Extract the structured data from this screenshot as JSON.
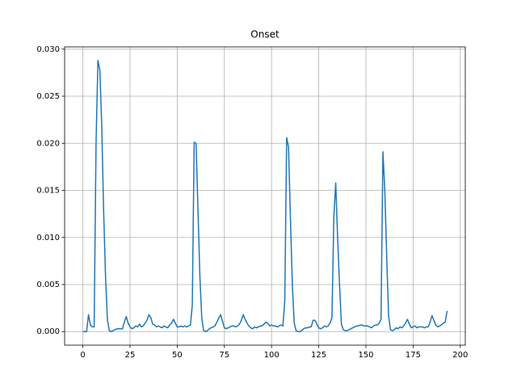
{
  "chart_data": {
    "type": "line",
    "title": "Onset",
    "x": [
      0,
      1,
      2,
      3,
      4,
      5,
      6,
      7,
      8,
      9,
      10,
      11,
      12,
      13,
      14,
      15,
      16,
      17,
      18,
      19,
      20,
      21,
      22,
      23,
      24,
      25,
      26,
      27,
      28,
      29,
      30,
      31,
      32,
      33,
      34,
      35,
      36,
      37,
      38,
      39,
      40,
      41,
      42,
      43,
      44,
      45,
      46,
      47,
      48,
      49,
      50,
      51,
      52,
      53,
      54,
      55,
      56,
      57,
      58,
      59,
      60,
      61,
      62,
      63,
      64,
      65,
      66,
      67,
      68,
      69,
      70,
      71,
      72,
      73,
      74,
      75,
      76,
      77,
      78,
      79,
      80,
      81,
      82,
      83,
      84,
      85,
      86,
      87,
      88,
      89,
      90,
      91,
      92,
      93,
      94,
      95,
      96,
      97,
      98,
      99,
      100,
      101,
      102,
      103,
      104,
      105,
      106,
      107,
      108,
      109,
      110,
      111,
      112,
      113,
      114,
      115,
      116,
      117,
      118,
      119,
      120,
      121,
      122,
      123,
      124,
      125,
      126,
      127,
      128,
      129,
      130,
      131,
      132,
      133,
      134,
      135,
      136,
      137,
      138,
      139,
      140,
      141,
      142,
      143,
      144,
      145,
      146,
      147,
      148,
      149,
      150,
      151,
      152,
      153,
      154,
      155,
      156,
      157,
      158,
      159,
      160,
      161,
      162,
      163,
      164,
      165,
      166,
      167,
      168,
      169,
      170,
      171,
      172,
      173,
      174,
      175,
      176,
      177,
      178,
      179,
      180,
      181,
      182,
      183,
      184,
      185,
      186,
      187,
      188,
      189,
      190,
      191,
      192,
      193
    ],
    "series": [
      {
        "color": "#1f77b4",
        "values": [
          0,
          0,
          0,
          0.0018,
          0.0007,
          0.0005,
          0.0005,
          0.02,
          0.0288,
          0.0278,
          0.022,
          0.013,
          0.006,
          0.0013,
          0.0001,
          0.0,
          0.0001,
          0.0002,
          0.0003,
          0.0003,
          0.0003,
          0.0003,
          0.001,
          0.0016,
          0.0009,
          0.0005,
          0.0003,
          0.0004,
          0.0006,
          0.0005,
          0.0008,
          0.0005,
          0.0006,
          0.0009,
          0.0012,
          0.0018,
          0.0015,
          0.0008,
          0.0007,
          0.0005,
          0.0006,
          0.0005,
          0.0004,
          0.0006,
          0.0005,
          0.0004,
          0.0007,
          0.0009,
          0.0013,
          0.0009,
          0.0005,
          0.0005,
          0.0006,
          0.0005,
          0.0006,
          0.0005,
          0.0006,
          0.0007,
          0.0028,
          0.0201,
          0.02,
          0.013,
          0.006,
          0.0015,
          0.0001,
          0.0,
          0.0001,
          0.0003,
          0.0004,
          0.0005,
          0.0006,
          0.001,
          0.0014,
          0.0018,
          0.0011,
          0.0004,
          0.0003,
          0.0004,
          0.0005,
          0.0006,
          0.0006,
          0.0005,
          0.0006,
          0.0008,
          0.0012,
          0.0018,
          0.0013,
          0.0009,
          0.0006,
          0.0004,
          0.0003,
          0.0005,
          0.0004,
          0.0005,
          0.0006,
          0.0006,
          0.0008,
          0.001,
          0.0009,
          0.0006,
          0.0007,
          0.0006,
          0.0006,
          0.0005,
          0.0006,
          0.0007,
          0.0006,
          0.0033,
          0.0206,
          0.0196,
          0.012,
          0.005,
          0.0009,
          0.0001,
          0.0,
          0.0,
          0.0001,
          0.0003,
          0.0004,
          0.0004,
          0.0005,
          0.0005,
          0.0012,
          0.0012,
          0.0008,
          0.0004,
          0.0003,
          0.0004,
          0.0006,
          0.0005,
          0.0006,
          0.0009,
          0.0015,
          0.0122,
          0.0158,
          0.01,
          0.005,
          0.0008,
          0.0002,
          0.0001,
          0.0001,
          0.0002,
          0.0003,
          0.0004,
          0.0005,
          0.0006,
          0.0006,
          0.0007,
          0.0007,
          0.0006,
          0.0006,
          0.0006,
          0.0005,
          0.0004,
          0.0006,
          0.0007,
          0.0007,
          0.0009,
          0.0013,
          0.0191,
          0.015,
          0.008,
          0.0017,
          0.0002,
          0.0001,
          0.0002,
          0.0004,
          0.0003,
          0.0005,
          0.0004,
          0.0006,
          0.0009,
          0.0013,
          0.0008,
          0.0004,
          0.0005,
          0.0006,
          0.0004,
          0.0005,
          0.0005,
          0.0005,
          0.0004,
          0.0005,
          0.0005,
          0.001,
          0.0017,
          0.0012,
          0.0007,
          0.0005,
          0.0006,
          0.0007,
          0.0009,
          0.001,
          0.0022
        ]
      }
    ],
    "xlim": [
      -9.65,
      202.65
    ],
    "xticks": [
      0,
      25,
      50,
      75,
      100,
      125,
      150,
      175,
      200
    ],
    "ylim": [
      -0.00144,
      0.03024
    ],
    "yticks": [
      {
        "value": 0,
        "label": "0.000"
      },
      {
        "value": 0.005,
        "label": "0.005"
      },
      {
        "value": 0.01,
        "label": "0.010"
      },
      {
        "value": 0.015,
        "label": "0.015"
      },
      {
        "value": 0.02,
        "label": "0.020"
      },
      {
        "value": 0.025,
        "label": "0.025"
      },
      {
        "value": 0.03,
        "label": "0.030"
      }
    ],
    "grid": true
  }
}
